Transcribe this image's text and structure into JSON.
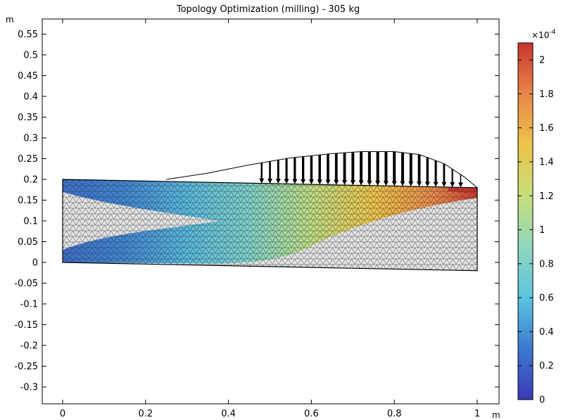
{
  "chart_data": {
    "type": "heatmap",
    "title": "Topology Optimization (milling) - 305 kg",
    "xlabel": "m",
    "ylabel": "m",
    "xlim": [
      -0.05,
      1.05
    ],
    "ylim": [
      -0.34,
      0.585
    ],
    "x_ticks": [
      0,
      0.2,
      0.4,
      0.6,
      0.8,
      1
    ],
    "x_tick_labels": [
      "0",
      "0.2",
      "0.4",
      "0.6",
      "0.8",
      "1"
    ],
    "y_ticks": [
      0.55,
      0.5,
      0.45,
      0.4,
      0.35,
      0.3,
      0.25,
      0.2,
      0.15,
      0.1,
      0.05,
      0,
      -0.05,
      -0.1,
      -0.15,
      -0.2,
      -0.25,
      -0.3
    ],
    "y_tick_labels": [
      "0.55",
      "0.5",
      "0.45",
      "0.4",
      "0.35",
      "0.3",
      "0.25",
      "0.2",
      "0.15",
      "0.1",
      "0.05",
      "0",
      "-0.05",
      "-0.1",
      "-0.15",
      "-0.2",
      "-0.25",
      "-0.3"
    ],
    "colorbar": {
      "exponent_label": "×10",
      "exponent_power": "-4",
      "range": [
        0,
        2.1
      ],
      "ticks": [
        0,
        0.2,
        0.4,
        0.6,
        0.8,
        1,
        1.2,
        1.4,
        1.6,
        1.8,
        2
      ],
      "tick_labels": [
        "0",
        "0.2",
        "0.4",
        "0.6",
        "0.8",
        "1",
        "1.2",
        "1.4",
        "1.6",
        "1.8",
        "2"
      ],
      "colormap": [
        "#3a3ab8",
        "#3c79cf",
        "#5cc5e0",
        "#8fd7bd",
        "#c8df7a",
        "#edc44a",
        "#e8874a",
        "#c8352c"
      ]
    },
    "beam": {
      "outline": [
        [
          0,
          0.2
        ],
        [
          1,
          0.18
        ],
        [
          1,
          -0.02
        ],
        [
          0,
          0
        ]
      ],
      "load_curve": [
        [
          0.25,
          0.2
        ],
        [
          0.35,
          0.215
        ],
        [
          0.45,
          0.235
        ],
        [
          0.55,
          0.252
        ],
        [
          0.65,
          0.262
        ],
        [
          0.72,
          0.267
        ],
        [
          0.8,
          0.267
        ],
        [
          0.86,
          0.26
        ],
        [
          0.92,
          0.238
        ],
        [
          0.97,
          0.205
        ],
        [
          1,
          0.18
        ]
      ],
      "load_arrow_x": [
        0.48,
        0.5,
        0.52,
        0.54,
        0.56,
        0.58,
        0.6,
        0.62,
        0.64,
        0.66,
        0.68,
        0.7,
        0.72,
        0.74,
        0.76,
        0.78,
        0.8,
        0.82,
        0.84,
        0.86,
        0.88,
        0.9,
        0.92,
        0.94,
        0.96
      ],
      "color_bands": [
        {
          "x": 0.0,
          "value": 0.25
        },
        {
          "x": 0.15,
          "value": 0.35
        },
        {
          "x": 0.3,
          "value": 0.55
        },
        {
          "x": 0.45,
          "value": 0.8
        },
        {
          "x": 0.6,
          "value": 1.15
        },
        {
          "x": 0.75,
          "value": 1.5
        },
        {
          "x": 0.9,
          "value": 1.8
        },
        {
          "x": 1.0,
          "value": 2.08
        }
      ],
      "solid_region_colors": {
        "void": "#e3e3e3",
        "mesh_line": "#3a3a3a",
        "top_tip": "#c8352c"
      }
    }
  }
}
